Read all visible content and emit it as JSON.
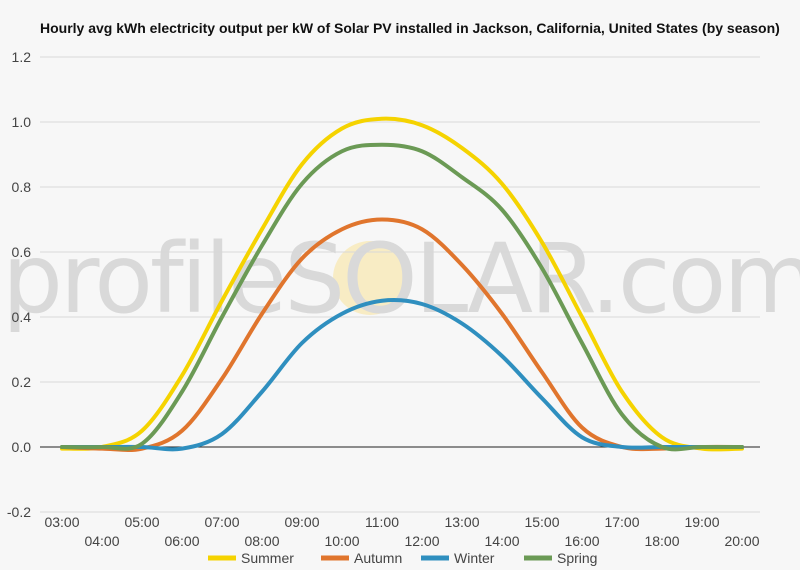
{
  "chart_data": {
    "type": "line",
    "title": "Hourly avg kWh electricity output per kW of Solar PV installed in Jackson, California, United States (by season)",
    "xlabel": "",
    "ylabel": "",
    "x": [
      "03:00",
      "04:00",
      "05:00",
      "06:00",
      "07:00",
      "08:00",
      "09:00",
      "10:00",
      "11:00",
      "12:00",
      "13:00",
      "14:00",
      "15:00",
      "16:00",
      "17:00",
      "18:00",
      "19:00",
      "20:00"
    ],
    "ylim": [
      -0.2,
      1.2
    ],
    "yticks": [
      "-0.2",
      "0.0",
      "0.2",
      "0.4",
      "0.6",
      "0.8",
      "1.0",
      "1.2"
    ],
    "grid": true,
    "legend_position": "bottom",
    "series": [
      {
        "name": "Summer",
        "color": "#f5d300",
        "values": [
          -0.005,
          0.0,
          0.05,
          0.22,
          0.45,
          0.67,
          0.87,
          0.98,
          1.01,
          0.99,
          0.92,
          0.81,
          0.63,
          0.4,
          0.17,
          0.03,
          -0.005,
          -0.005
        ]
      },
      {
        "name": "Autumn",
        "color": "#e0752d",
        "values": [
          0.0,
          -0.005,
          -0.005,
          0.05,
          0.21,
          0.41,
          0.58,
          0.67,
          0.7,
          0.67,
          0.56,
          0.41,
          0.23,
          0.06,
          0.0,
          -0.005,
          0.0,
          0.0
        ]
      },
      {
        "name": "Winter",
        "color": "#2f8fbf",
        "values": [
          0.0,
          0.0,
          0.0,
          -0.005,
          0.04,
          0.17,
          0.32,
          0.41,
          0.45,
          0.44,
          0.38,
          0.28,
          0.15,
          0.03,
          0.0,
          0.0,
          0.0,
          0.0
        ]
      },
      {
        "name": "Spring",
        "color": "#6b9a55",
        "values": [
          0.0,
          0.0,
          0.01,
          0.17,
          0.4,
          0.62,
          0.81,
          0.91,
          0.93,
          0.91,
          0.83,
          0.73,
          0.55,
          0.32,
          0.1,
          0.0,
          0.0,
          0.0
        ]
      }
    ]
  },
  "watermark": "profileSOLAR.com"
}
